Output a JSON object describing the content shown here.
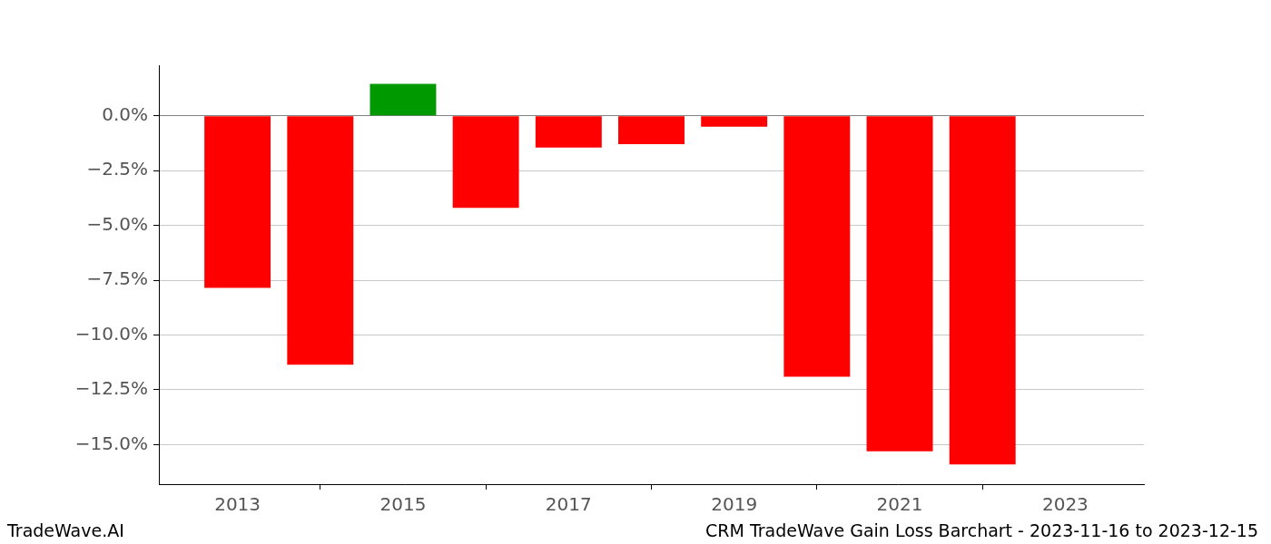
{
  "chart_data": {
    "type": "bar",
    "title": "CRM TradeWave Gain Loss Barchart - 2023-11-16 to 2023-12-15",
    "annotations": [
      "TradeWave.AI"
    ],
    "x": [
      2013,
      2014,
      2015,
      2016,
      2017,
      2018,
      2019,
      2020,
      2021,
      2022
    ],
    "values": [
      -7.85,
      -11.35,
      1.45,
      -4.2,
      -1.45,
      -1.3,
      -0.5,
      -11.9,
      -15.3,
      -15.9
    ],
    "colors": [
      "#ff0000",
      "#ff0000",
      "#009900",
      "#ff0000",
      "#ff0000",
      "#ff0000",
      "#ff0000",
      "#ff0000",
      "#ff0000",
      "#ff0000"
    ],
    "xlim": [
      2012.05,
      2023.95
    ],
    "xticks": [
      2013,
      2015,
      2017,
      2019,
      2021,
      2023
    ],
    "ylim": [
      -16.8,
      2.3
    ],
    "yticks": [
      {
        "value": 0,
        "label": "0.0%"
      },
      {
        "value": -2.5,
        "label": "−2.5%"
      },
      {
        "value": -5,
        "label": "−5.0%"
      },
      {
        "value": -7.5,
        "label": "−7.5%"
      },
      {
        "value": -10,
        "label": "−10.0%"
      },
      {
        "value": -12.5,
        "label": "−12.5%"
      },
      {
        "value": -15,
        "label": "−15.0%"
      }
    ],
    "grid": true
  }
}
